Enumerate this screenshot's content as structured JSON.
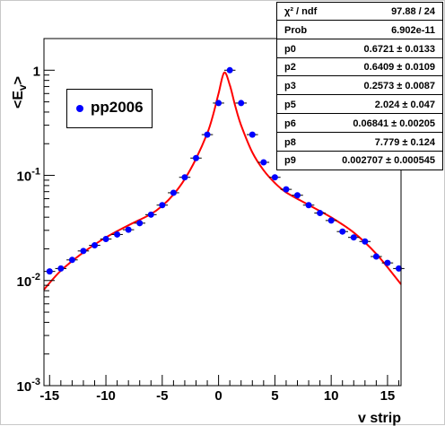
{
  "chart_data": {
    "type": "scatter",
    "xlabel": "v strip",
    "ylabel": "<E_v>",
    "xlim": [
      -15.5,
      16.2
    ],
    "ylim": [
      0.001,
      2
    ],
    "yscale": "log",
    "x_ticks": [
      "-15",
      "-10",
      "-5",
      "0",
      "5",
      "10",
      "15"
    ],
    "y_ticks": [
      {
        "mantissa": "10",
        "exp": "-3",
        "value": 0.001
      },
      {
        "mantissa": "10",
        "exp": "-2",
        "value": 0.01
      },
      {
        "mantissa": "10",
        "exp": "-1",
        "value": 0.1
      },
      {
        "mantissa": "1",
        "exp": "",
        "value": 1
      }
    ],
    "legend": {
      "label": "pp2006",
      "position": "upper-left"
    },
    "series": [
      {
        "name": "pp2006",
        "color": "#0000ff",
        "x": [
          -15,
          -14,
          -13,
          -12,
          -11,
          -10,
          -9,
          -8,
          -7,
          -6,
          -5,
          -4,
          -3,
          -2,
          -1,
          0,
          1,
          2,
          3,
          4,
          5,
          6,
          7,
          8,
          9,
          10,
          11,
          12,
          13,
          14,
          15,
          16
        ],
        "y": [
          0.0122,
          0.013,
          0.0157,
          0.0191,
          0.0216,
          0.0248,
          0.0274,
          0.0304,
          0.0351,
          0.0423,
          0.0521,
          0.0683,
          0.0958,
          0.146,
          0.244,
          0.487,
          1.0,
          0.487,
          0.244,
          0.133,
          0.0958,
          0.0736,
          0.0647,
          0.0521,
          0.0438,
          0.0372,
          0.0292,
          0.0257,
          0.0235,
          0.0169,
          0.0147,
          0.013
        ]
      },
      {
        "name": "fit",
        "color": "#ff0000",
        "x": [
          -15.5,
          -14,
          -12,
          -10,
          -8,
          -6,
          -5,
          -4,
          -3,
          -2,
          -1,
          -0.5,
          0,
          0.5,
          1,
          1.5,
          2,
          3,
          4,
          5,
          6,
          8,
          10,
          12,
          14,
          16.2
        ],
        "y": [
          0.0082,
          0.0124,
          0.0185,
          0.0257,
          0.0335,
          0.0428,
          0.0513,
          0.0658,
          0.0921,
          0.144,
          0.252,
          0.37,
          0.6,
          0.95,
          0.72,
          0.45,
          0.3,
          0.165,
          0.112,
          0.0846,
          0.0689,
          0.0523,
          0.0398,
          0.0286,
          0.0179,
          0.0092
        ]
      }
    ]
  },
  "stats": [
    {
      "name": "χ² / ndf",
      "value": "97.88 / 24"
    },
    {
      "name": "Prob",
      "value": "6.902e-11"
    },
    {
      "name": "p0",
      "value": "0.6721 ± 0.0133"
    },
    {
      "name": "p2",
      "value": "0.6409 ± 0.0109"
    },
    {
      "name": "p3",
      "value": "0.2573 ± 0.0087"
    },
    {
      "name": "p5",
      "value": "2.024 ± 0.047"
    },
    {
      "name": "p6",
      "value": "0.06841 ± 0.00205"
    },
    {
      "name": "p8",
      "value": "7.779 ± 0.124"
    },
    {
      "name": "p9",
      "value": "0.002707 ± 0.000545"
    }
  ],
  "colors": {
    "frame_fill": "#ffffff",
    "marker": "#0000ff",
    "fit": "#ff0000"
  }
}
